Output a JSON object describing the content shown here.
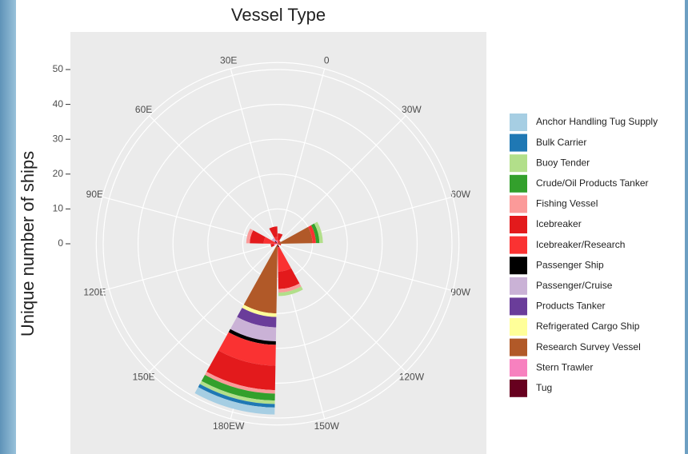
{
  "chart_data": {
    "type": "polar-stacked-bar",
    "title": "Vessel Type",
    "y_label": "Unique number of ships",
    "categories": [
      "0",
      "30W",
      "60W",
      "90W",
      "120W",
      "150W",
      "180EW",
      "150E",
      "120E",
      "90E",
      "60E",
      "30E"
    ],
    "ylim": [
      0,
      52
    ],
    "yticks": [
      0,
      10,
      20,
      30,
      40,
      50
    ],
    "grid": true,
    "legend": "right",
    "series": [
      {
        "name": "Anchor Handling Tug Supply",
        "color": "#a6cee3",
        "values": [
          0,
          0,
          0,
          0,
          0,
          0,
          2,
          0,
          0,
          0,
          0,
          0
        ]
      },
      {
        "name": "Bulk Carrier",
        "color": "#1f78b4",
        "values": [
          0,
          0,
          0,
          0,
          0,
          0,
          1,
          0,
          0,
          0,
          0,
          0
        ]
      },
      {
        "name": "Buoy Tender",
        "color": "#b2df8a",
        "values": [
          0,
          0,
          1,
          0,
          0,
          1,
          1,
          0,
          0,
          0,
          0,
          0
        ]
      },
      {
        "name": "Crude/Oil Products Tanker",
        "color": "#33a02c",
        "values": [
          0,
          0,
          1,
          0,
          0,
          0,
          2,
          0,
          0,
          0,
          0,
          0
        ]
      },
      {
        "name": "Fishing Vessel",
        "color": "#fb9a99",
        "values": [
          0,
          0,
          0,
          0,
          0,
          1,
          1,
          0,
          0,
          1,
          0,
          0
        ]
      },
      {
        "name": "Icebreaker",
        "color": "#e31a1c",
        "values": [
          2,
          1,
          0,
          1,
          0,
          5,
          7,
          0,
          1,
          4,
          0,
          3
        ]
      },
      {
        "name": "Icebreaker/Research",
        "color": "#fa3232",
        "values": [
          1,
          0,
          1,
          0,
          0,
          7,
          6,
          0,
          0,
          4,
          0,
          1
        ]
      },
      {
        "name": "Passenger Ship",
        "color": "#000000",
        "values": [
          0,
          0,
          0,
          0,
          0,
          0,
          1,
          0,
          0,
          0,
          0,
          0
        ]
      },
      {
        "name": "Passenger/Cruise",
        "color": "#cab2d6",
        "values": [
          0,
          0,
          0,
          0,
          0,
          0,
          4,
          0,
          0,
          0,
          1,
          0
        ]
      },
      {
        "name": "Products Tanker",
        "color": "#6a3d9a",
        "values": [
          0,
          0,
          0,
          0,
          0,
          0,
          3,
          0,
          0,
          0,
          0,
          0
        ]
      },
      {
        "name": "Refrigerated Cargo Ship",
        "color": "#ffff99",
        "values": [
          0,
          0,
          0,
          0,
          0,
          0,
          1,
          0,
          0,
          0,
          0,
          0
        ]
      },
      {
        "name": "Research Survey Vessel",
        "color": "#b15928",
        "values": [
          0,
          0,
          10,
          0,
          0,
          0,
          20,
          0,
          0,
          0,
          0,
          0
        ]
      },
      {
        "name": "Stern Trawler",
        "color": "#f781bf",
        "values": [
          0,
          0,
          0,
          0,
          0,
          0,
          0,
          0,
          1,
          0,
          0,
          1
        ]
      },
      {
        "name": "Tug",
        "color": "#67001f",
        "values": [
          0,
          0,
          0,
          0,
          0,
          1,
          0,
          0,
          0,
          0,
          1,
          0
        ]
      }
    ]
  }
}
